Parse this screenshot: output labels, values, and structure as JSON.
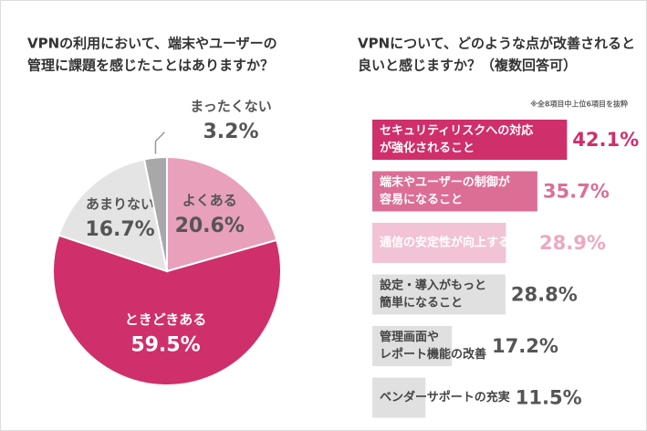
{
  "chart_data": [
    {
      "type": "pie",
      "title": [
        "VPNの利用において、端末やユーザーの",
        "管理に課題を感じたことはありますか？"
      ],
      "categories": [
        "よくある",
        "ときどきある",
        "あまりない",
        "まったくない"
      ],
      "values": [
        20.6,
        59.5,
        16.7,
        3.2
      ],
      "value_labels": [
        "20.6%",
        "59.5%",
        "16.7%",
        "3.2%"
      ],
      "colors": [
        "#e8a0bb",
        "#cf2f6b",
        "#e4e4e4",
        "#a8a8a8"
      ]
    },
    {
      "type": "hbar",
      "title": [
        "VPNについて、どのような点が改善されると",
        "良いと感じますか？（複数回答可）"
      ],
      "note": "※全8項目中上位6項目を抜粋",
      "categories": [
        [
          "セキュリティリスクへの対応",
          "が強化されること"
        ],
        [
          "端末やユーザーの制御が",
          "容易になること"
        ],
        [
          "通信の安定性が向上すること"
        ],
        [
          "設定・導入がもっと",
          "簡単になること"
        ],
        [
          "管理画面や",
          "レポート機能の改善"
        ],
        [
          "ベンダーサポートの充実"
        ]
      ],
      "values": [
        42.1,
        35.7,
        28.9,
        28.8,
        17.2,
        11.5
      ],
      "value_labels": [
        "42.1%",
        "35.7%",
        "28.9%",
        "28.8%",
        "17.2%",
        "11.5%"
      ],
      "colors": [
        "#cf2f6b",
        "#dc6e96",
        "#f2c3d4",
        "#e0e0e0",
        "#e0e0e0",
        "#e0e0e0"
      ],
      "xlim": [
        0,
        45
      ]
    }
  ]
}
